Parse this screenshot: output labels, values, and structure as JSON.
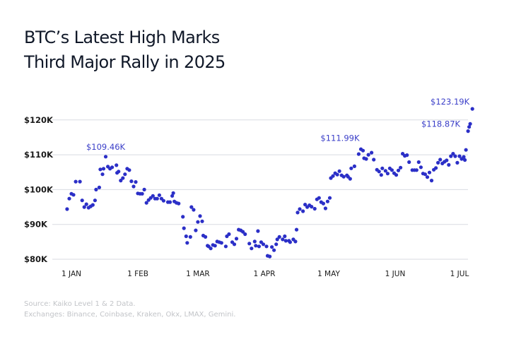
{
  "title": {
    "line1": "BTC’s Latest High Marks",
    "line2": "Third Major Rally in 2025"
  },
  "footer": {
    "source": "Source: Kaiko Level 1 & 2 Data.",
    "exchanges": "Exchanges:  Binance, Coinbase, Kraken, Okx, LMAX, Gemini."
  },
  "colors": {
    "points": "#2b2fc7",
    "annotation": "#3a3ec8",
    "grid": "#d8dbe2",
    "title": "#101828",
    "footer": "#c2c4c8"
  },
  "chart_data": {
    "type": "scatter",
    "title": "BTC’s Latest High Marks Third Major Rally in 2025",
    "xlabel": "",
    "ylabel": "",
    "x_unit": "days since 1 Jan 2025 (0 = 1 Jan)",
    "xlim": [
      -4,
      188
    ],
    "ylim": [
      80,
      124
    ],
    "y_unit": "USD thousands",
    "grid": "horizontal",
    "legend": "none",
    "y_ticks": [
      {
        "value": 80,
        "label": "$80K"
      },
      {
        "value": 90,
        "label": "$90K"
      },
      {
        "value": 100,
        "label": "$100K"
      },
      {
        "value": 110,
        "label": "$110K"
      },
      {
        "value": 120,
        "label": "$120K"
      }
    ],
    "x_ticks": [
      {
        "value": 0,
        "label": "1 JAN"
      },
      {
        "value": 31,
        "label": "1 FEB"
      },
      {
        "value": 59,
        "label": "1 MAR"
      },
      {
        "value": 90,
        "label": "1 APR"
      },
      {
        "value": 120,
        "label": "1 MAY"
      },
      {
        "value": 151,
        "label": "1 JUN"
      },
      {
        "value": 181,
        "label": "1 JUL"
      }
    ],
    "annotations": [
      {
        "text": "$109.46K",
        "x": 16,
        "y": 109.46,
        "position": "above"
      },
      {
        "text": "$111.99K",
        "x": 137,
        "y": 111.99,
        "position": "above-left"
      },
      {
        "text": "$118.87K",
        "x": 184,
        "y": 118.87,
        "position": "left"
      },
      {
        "text": "$123.19K",
        "x": 187,
        "y": 123.19,
        "position": "above-left"
      }
    ],
    "series": [
      {
        "name": "BTC price",
        "points": [
          [
            -2,
            94.4
          ],
          [
            -1,
            97.4
          ],
          [
            0,
            98.8
          ],
          [
            1,
            98.5
          ],
          [
            2,
            102.3
          ],
          [
            4,
            102.3
          ],
          [
            5,
            96.9
          ],
          [
            6,
            95.0
          ],
          [
            7,
            95.8
          ],
          [
            8,
            94.8
          ],
          [
            9,
            95.2
          ],
          [
            10,
            95.6
          ],
          [
            11,
            96.9
          ],
          [
            11.5,
            100.0
          ],
          [
            13,
            100.6
          ],
          [
            13.5,
            105.8
          ],
          [
            14.5,
            104.4
          ],
          [
            15,
            106.0
          ],
          [
            16,
            109.46
          ],
          [
            17,
            106.6
          ],
          [
            18,
            106.0
          ],
          [
            19,
            106.4
          ],
          [
            21,
            107.0
          ],
          [
            21.3,
            104.8
          ],
          [
            22,
            105.2
          ],
          [
            23,
            102.6
          ],
          [
            24,
            103.3
          ],
          [
            25,
            104.4
          ],
          [
            26,
            106.0
          ],
          [
            27,
            105.6
          ],
          [
            28,
            102.4
          ],
          [
            29,
            100.9
          ],
          [
            30,
            102.2
          ],
          [
            31,
            98.9
          ],
          [
            32,
            98.8
          ],
          [
            33,
            98.8
          ],
          [
            34,
            100.0
          ],
          [
            35,
            96.2
          ],
          [
            36,
            97.0
          ],
          [
            37,
            97.6
          ],
          [
            38,
            98.2
          ],
          [
            39,
            97.4
          ],
          [
            40,
            97.4
          ],
          [
            41,
            98.4
          ],
          [
            42,
            97.4
          ],
          [
            43,
            96.8
          ],
          [
            45,
            96.4
          ],
          [
            46,
            96.4
          ],
          [
            47,
            98.2
          ],
          [
            47.5,
            99.0
          ],
          [
            48,
            96.6
          ],
          [
            49,
            96.2
          ],
          [
            50,
            96.0
          ],
          [
            52,
            92.2
          ],
          [
            52.5,
            88.9
          ],
          [
            53.5,
            86.6
          ],
          [
            54,
            84.7
          ],
          [
            55.5,
            86.4
          ],
          [
            56,
            95.0
          ],
          [
            57,
            94.2
          ],
          [
            58,
            88.3
          ],
          [
            59,
            90.7
          ],
          [
            60,
            92.4
          ],
          [
            61,
            90.9
          ],
          [
            61.5,
            86.8
          ],
          [
            62.5,
            86.4
          ],
          [
            63.5,
            83.9
          ],
          [
            64,
            83.7
          ],
          [
            65,
            83.1
          ],
          [
            66,
            84.1
          ],
          [
            67,
            83.9
          ],
          [
            68,
            85.1
          ],
          [
            69,
            84.9
          ],
          [
            70,
            84.7
          ],
          [
            72,
            83.7
          ],
          [
            72.5,
            86.6
          ],
          [
            73.5,
            87.2
          ],
          [
            75,
            84.9
          ],
          [
            76,
            84.3
          ],
          [
            77,
            85.9
          ],
          [
            78,
            88.5
          ],
          [
            79,
            88.3
          ],
          [
            80,
            87.9
          ],
          [
            81,
            87.2
          ],
          [
            83,
            84.5
          ],
          [
            84,
            83.1
          ],
          [
            85.5,
            85.1
          ],
          [
            86,
            83.9
          ],
          [
            87,
            88.1
          ],
          [
            87.5,
            83.7
          ],
          [
            88.5,
            84.9
          ],
          [
            89.5,
            84.3
          ],
          [
            91,
            83.7
          ],
          [
            91.5,
            81.0
          ],
          [
            92.5,
            80.8
          ],
          [
            93.5,
            83.5
          ],
          [
            94.5,
            82.6
          ],
          [
            95.5,
            84.3
          ],
          [
            96,
            85.7
          ],
          [
            97,
            86.4
          ],
          [
            98.5,
            85.7
          ],
          [
            99.5,
            86.6
          ],
          [
            100,
            85.3
          ],
          [
            101.5,
            85.3
          ],
          [
            102,
            84.9
          ],
          [
            103.5,
            85.7
          ],
          [
            104.5,
            85.1
          ],
          [
            105,
            88.5
          ],
          [
            105.5,
            93.4
          ],
          [
            106.5,
            94.4
          ],
          [
            108,
            93.8
          ],
          [
            109,
            95.7
          ],
          [
            110,
            95.0
          ],
          [
            111,
            95.5
          ],
          [
            112,
            95.1
          ],
          [
            113.5,
            94.5
          ],
          [
            114.5,
            97.2
          ],
          [
            115.5,
            97.6
          ],
          [
            116.5,
            96.4
          ],
          [
            117.5,
            96.0
          ],
          [
            118.5,
            94.6
          ],
          [
            119.5,
            96.6
          ],
          [
            120.5,
            97.6
          ],
          [
            121,
            103.3
          ],
          [
            122,
            103.9
          ],
          [
            123,
            104.7
          ],
          [
            124,
            104.3
          ],
          [
            125,
            105.3
          ],
          [
            126,
            104.1
          ],
          [
            127,
            103.7
          ],
          [
            128.5,
            104.1
          ],
          [
            129,
            103.7
          ],
          [
            130,
            103.1
          ],
          [
            130.5,
            106.1
          ],
          [
            132,
            106.7
          ],
          [
            134,
            110.2
          ],
          [
            135,
            111.6
          ],
          [
            136,
            111.2
          ],
          [
            136.5,
            109.0
          ],
          [
            137.5,
            108.8
          ],
          [
            138.5,
            110.0
          ],
          [
            140,
            110.6
          ],
          [
            141,
            108.6
          ],
          [
            142.5,
            105.7
          ],
          [
            143.5,
            105.2
          ],
          [
            144.5,
            104.2
          ],
          [
            145,
            106.1
          ],
          [
            146.5,
            105.4
          ],
          [
            147.5,
            104.6
          ],
          [
            148.5,
            106.1
          ],
          [
            149.5,
            105.6
          ],
          [
            150.5,
            104.7
          ],
          [
            151.5,
            104.2
          ],
          [
            152.5,
            105.5
          ],
          [
            153.5,
            106.3
          ],
          [
            154.5,
            110.3
          ],
          [
            155.5,
            109.7
          ],
          [
            156.5,
            109.9
          ],
          [
            157.5,
            107.9
          ],
          [
            159,
            105.6
          ],
          [
            160,
            105.6
          ],
          [
            161,
            105.6
          ],
          [
            162,
            107.9
          ],
          [
            163,
            106.4
          ],
          [
            164,
            104.6
          ],
          [
            165,
            104.4
          ],
          [
            166,
            103.6
          ],
          [
            167,
            104.9
          ],
          [
            168,
            102.6
          ],
          [
            169,
            105.7
          ],
          [
            170,
            106.2
          ],
          [
            171,
            107.7
          ],
          [
            172,
            108.6
          ],
          [
            173,
            107.5
          ],
          [
            174,
            108.0
          ],
          [
            175,
            108.4
          ],
          [
            176,
            107.1
          ],
          [
            177,
            109.6
          ],
          [
            178,
            110.3
          ],
          [
            179,
            109.6
          ],
          [
            180,
            107.7
          ],
          [
            181,
            109.6
          ],
          [
            182,
            108.8
          ],
          [
            183,
            109.4
          ],
          [
            183.5,
            108.5
          ],
          [
            184,
            111.4
          ],
          [
            185,
            116.8
          ],
          [
            185.5,
            118.0
          ],
          [
            186,
            118.87
          ],
          [
            187,
            123.19
          ]
        ]
      }
    ]
  }
}
